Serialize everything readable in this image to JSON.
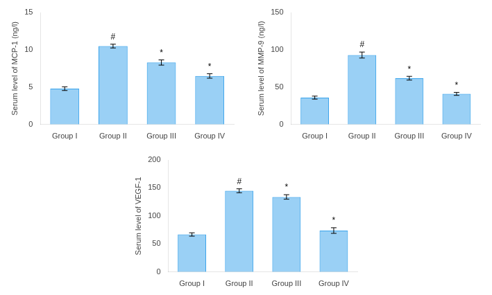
{
  "chart_data": [
    {
      "type": "bar",
      "ylabel": "Serum level of MCP-1 (ng/l)",
      "categories": [
        "Group I",
        "Group II",
        "Group III",
        "Group IV"
      ],
      "values": [
        4.8,
        10.5,
        8.3,
        6.5
      ],
      "errors": [
        0.25,
        0.25,
        0.35,
        0.3
      ],
      "annotations": [
        {
          "category": "Group II",
          "text": "#"
        },
        {
          "category": "Group III",
          "text": "*"
        },
        {
          "category": "Group IV",
          "text": "*"
        }
      ],
      "ylim": [
        0,
        15
      ],
      "yticks": [
        0,
        5,
        10,
        15
      ],
      "grid": false
    },
    {
      "type": "bar",
      "ylabel": "Serum level of MMP-9 (ng/l)",
      "categories": [
        "Group I",
        "Group II",
        "Group III",
        "Group IV"
      ],
      "values": [
        36,
        93,
        62,
        41
      ],
      "errors": [
        2,
        4,
        2.5,
        2
      ],
      "annotations": [
        {
          "category": "Group II",
          "text": "#"
        },
        {
          "category": "Group III",
          "text": "*"
        },
        {
          "category": "Group IV",
          "text": "*"
        }
      ],
      "ylim": [
        0,
        150
      ],
      "yticks": [
        0,
        50,
        100,
        150
      ],
      "grid": false
    },
    {
      "type": "bar",
      "ylabel": "Serum level of VEGF-1",
      "categories": [
        "Group I",
        "Group II",
        "Group III",
        "Group IV"
      ],
      "values": [
        67,
        145,
        134,
        74
      ],
      "errors": [
        3,
        3.5,
        4,
        5
      ],
      "annotations": [
        {
          "category": "Group II",
          "text": "#"
        },
        {
          "category": "Group III",
          "text": "*"
        },
        {
          "category": "Group IV",
          "text": "*"
        }
      ],
      "ylim": [
        0,
        200
      ],
      "yticks": [
        0,
        50,
        100,
        150,
        200
      ],
      "grid": false
    }
  ]
}
